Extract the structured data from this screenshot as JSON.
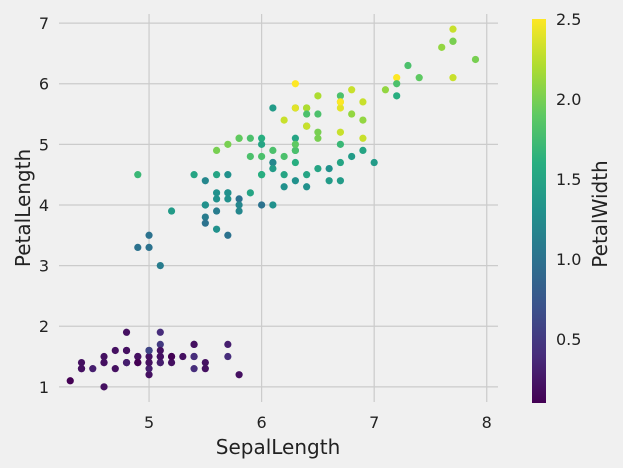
{
  "chart_data": {
    "type": "scatter",
    "title": "",
    "xlabel": "SepalLength",
    "ylabel": "PetalLength",
    "colorbar_label": "PetalWidth",
    "colormap": "viridis",
    "grid": true,
    "background": "#f0f0f0",
    "xlim": [
      4.2,
      8.1
    ],
    "ylim": [
      0.75,
      7.15
    ],
    "clim": [
      0.1,
      2.5
    ],
    "xticks": [
      5,
      6,
      7,
      8
    ],
    "yticks": [
      1,
      2,
      3,
      4,
      5,
      6,
      7
    ],
    "cticks": [
      0.5,
      1.0,
      1.5,
      2.0,
      2.5
    ],
    "x": [
      5.1,
      4.9,
      4.7,
      4.6,
      5.0,
      5.4,
      4.6,
      5.0,
      4.4,
      4.9,
      5.4,
      4.8,
      4.8,
      4.3,
      5.8,
      5.7,
      5.4,
      5.1,
      5.7,
      5.1,
      5.4,
      5.1,
      4.6,
      5.1,
      4.8,
      5.0,
      5.0,
      5.2,
      5.2,
      4.7,
      4.8,
      5.4,
      5.2,
      5.5,
      4.9,
      5.0,
      5.5,
      4.9,
      4.4,
      5.1,
      5.0,
      4.5,
      4.4,
      5.0,
      5.1,
      4.8,
      5.1,
      4.6,
      5.3,
      5.0,
      7.0,
      6.4,
      6.9,
      5.5,
      6.5,
      5.7,
      6.3,
      4.9,
      6.6,
      5.2,
      5.0,
      5.9,
      6.0,
      6.1,
      5.6,
      6.7,
      5.6,
      5.8,
      6.2,
      5.6,
      5.9,
      6.1,
      6.3,
      6.1,
      6.4,
      6.6,
      6.8,
      6.7,
      6.0,
      5.7,
      5.5,
      5.5,
      5.8,
      6.0,
      5.4,
      6.0,
      6.7,
      6.3,
      5.6,
      5.5,
      5.5,
      6.1,
      5.8,
      5.0,
      5.6,
      5.7,
      5.7,
      6.2,
      5.1,
      5.7,
      6.3,
      5.8,
      7.1,
      6.3,
      6.5,
      7.6,
      4.9,
      7.3,
      6.7,
      7.2,
      6.5,
      6.4,
      6.8,
      5.7,
      5.8,
      6.4,
      6.5,
      7.7,
      7.7,
      6.0,
      6.9,
      5.6,
      7.7,
      6.3,
      6.7,
      7.2,
      6.2,
      6.1,
      6.4,
      7.2,
      7.4,
      7.9,
      6.4,
      6.3,
      6.1,
      7.7,
      6.3,
      6.4,
      6.0,
      6.9,
      6.7,
      6.9,
      5.8,
      6.8,
      6.7,
      6.7,
      6.3,
      6.5,
      6.2,
      5.9
    ],
    "y": [
      1.4,
      1.4,
      1.3,
      1.5,
      1.4,
      1.7,
      1.4,
      1.5,
      1.4,
      1.5,
      1.5,
      1.6,
      1.4,
      1.1,
      1.2,
      1.5,
      1.3,
      1.4,
      1.7,
      1.5,
      1.7,
      1.5,
      1.0,
      1.7,
      1.9,
      1.6,
      1.6,
      1.5,
      1.4,
      1.6,
      1.6,
      1.5,
      1.5,
      1.4,
      1.5,
      1.2,
      1.3,
      1.4,
      1.3,
      1.5,
      1.3,
      1.3,
      1.3,
      1.6,
      1.9,
      1.4,
      1.6,
      1.4,
      1.5,
      1.4,
      4.7,
      4.5,
      4.9,
      4.0,
      4.6,
      4.5,
      4.7,
      3.3,
      4.6,
      3.9,
      3.5,
      4.2,
      4.0,
      4.7,
      3.6,
      4.4,
      4.5,
      4.1,
      4.5,
      3.9,
      4.8,
      4.0,
      4.9,
      4.7,
      4.3,
      4.4,
      4.8,
      5.0,
      4.5,
      3.5,
      3.8,
      3.7,
      3.9,
      5.1,
      4.5,
      4.5,
      4.7,
      4.4,
      4.1,
      4.0,
      4.4,
      4.6,
      4.0,
      3.3,
      4.2,
      4.2,
      4.2,
      4.3,
      3.0,
      4.1,
      6.0,
      5.1,
      5.9,
      5.6,
      5.8,
      6.6,
      4.5,
      6.3,
      5.8,
      6.1,
      5.1,
      5.3,
      5.5,
      5.0,
      5.1,
      5.3,
      5.5,
      6.7,
      6.9,
      5.0,
      5.7,
      4.9,
      6.7,
      4.9,
      5.7,
      6.0,
      4.8,
      4.9,
      5.6,
      5.8,
      6.1,
      6.4,
      5.6,
      5.1,
      5.6,
      6.1,
      5.6,
      5.5,
      4.8,
      5.4,
      5.6,
      5.1,
      5.1,
      5.9,
      5.7,
      5.2,
      5.0,
      5.2,
      5.4,
      5.1
    ],
    "c": [
      0.2,
      0.2,
      0.2,
      0.2,
      0.2,
      0.4,
      0.3,
      0.2,
      0.2,
      0.1,
      0.2,
      0.2,
      0.1,
      0.1,
      0.2,
      0.4,
      0.4,
      0.3,
      0.3,
      0.3,
      0.2,
      0.4,
      0.2,
      0.5,
      0.2,
      0.2,
      0.4,
      0.2,
      0.2,
      0.2,
      0.2,
      0.4,
      0.1,
      0.2,
      0.2,
      0.2,
      0.2,
      0.1,
      0.2,
      0.2,
      0.3,
      0.3,
      0.2,
      0.6,
      0.4,
      0.3,
      0.2,
      0.2,
      0.2,
      0.2,
      1.4,
      1.5,
      1.5,
      1.3,
      1.5,
      1.3,
      1.6,
      1.0,
      1.3,
      1.4,
      1.0,
      1.5,
      1.0,
      1.4,
      1.3,
      1.4,
      1.5,
      1.0,
      1.5,
      1.1,
      1.8,
      1.3,
      1.5,
      1.2,
      1.3,
      1.4,
      1.4,
      1.7,
      1.5,
      1.0,
      1.1,
      1.0,
      1.2,
      1.6,
      1.5,
      1.6,
      1.5,
      1.3,
      1.3,
      1.3,
      1.2,
      1.4,
      1.2,
      1.0,
      1.3,
      1.2,
      1.3,
      1.3,
      1.1,
      1.3,
      2.5,
      1.9,
      2.1,
      1.8,
      2.2,
      2.1,
      1.7,
      1.8,
      1.8,
      2.5,
      2.0,
      1.9,
      2.1,
      2.0,
      2.4,
      2.3,
      1.8,
      2.2,
      2.3,
      1.5,
      2.3,
      2.0,
      2.0,
      1.8,
      2.1,
      1.8,
      1.8,
      1.8,
      2.1,
      1.6,
      1.9,
      2.0,
      2.2,
      1.5,
      1.4,
      2.3,
      2.4,
      1.8,
      1.8,
      2.1,
      2.4,
      2.3,
      1.9,
      2.3,
      2.5,
      2.3,
      1.9,
      2.0,
      2.3,
      1.8
    ]
  }
}
